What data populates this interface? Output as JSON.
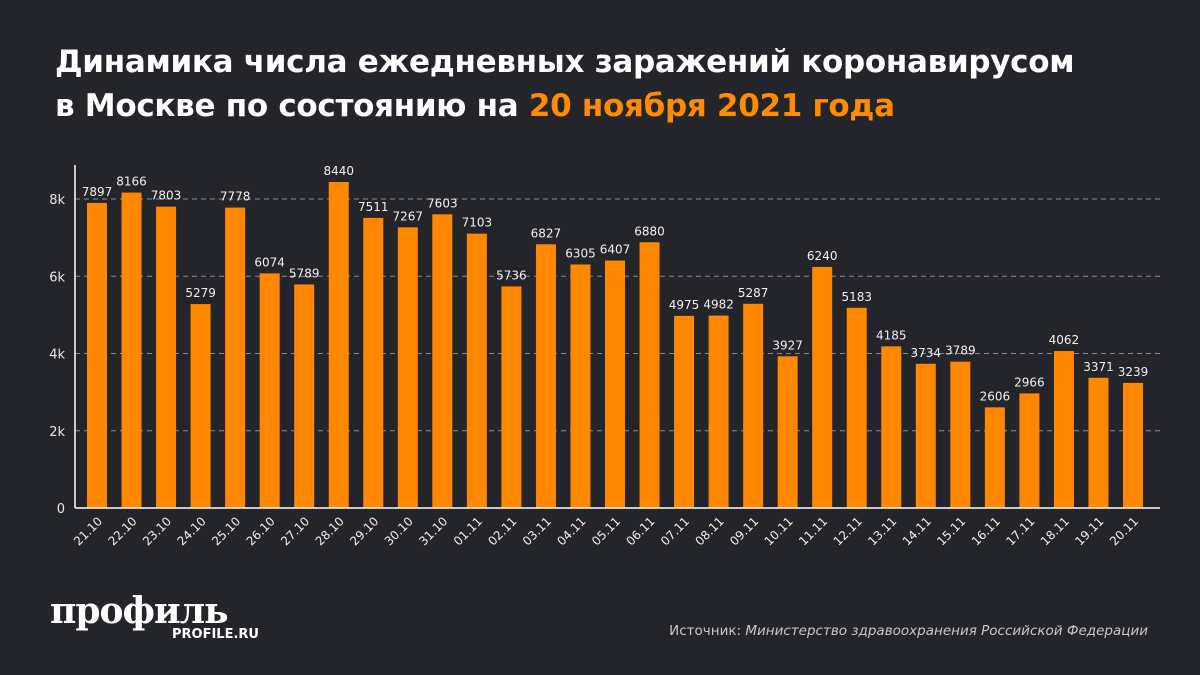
{
  "title": {
    "line1": "Динамика числа ежедневных заражений коронавирусом",
    "line2_prefix": "в Москве по состоянию на ",
    "line2_highlight": "20 ноября 2021 года"
  },
  "colors": {
    "bar": "#ff8800",
    "highlight": "#ff8c00",
    "background": "#24242b"
  },
  "chart_data": {
    "type": "bar",
    "categories": [
      "21.10",
      "22.10",
      "23.10",
      "24.10",
      "25.10",
      "26.10",
      "27.10",
      "28.10",
      "29.10",
      "30.10",
      "31.10",
      "01.11",
      "02.11",
      "03.11",
      "04.11",
      "05.11",
      "06.11",
      "07.11",
      "08.11",
      "09.11",
      "10.11",
      "11.11",
      "12.11",
      "13.11",
      "14.11",
      "15.11",
      "16.11",
      "17.11",
      "18.11",
      "19.11",
      "20.11"
    ],
    "values": [
      7897,
      8166,
      7803,
      5279,
      7778,
      6074,
      5789,
      8440,
      7511,
      7267,
      7603,
      7103,
      5736,
      6827,
      6305,
      6407,
      6880,
      4975,
      4982,
      5287,
      3927,
      6240,
      5183,
      4185,
      3734,
      3789,
      2606,
      2966,
      4062,
      3371,
      3239
    ],
    "ylim": [
      0,
      9000
    ],
    "yticks": [
      0,
      2000,
      4000,
      6000,
      8000
    ],
    "ytick_labels": [
      "0",
      "2k",
      "4k",
      "6k",
      "8k"
    ],
    "grid": true,
    "data_labels": true
  },
  "footer": {
    "logo": "профиль",
    "logo_sub": "PROFILE.RU",
    "source_prefix": "Источник: ",
    "source": "Министерство здравоохранения Российской Федерации"
  }
}
